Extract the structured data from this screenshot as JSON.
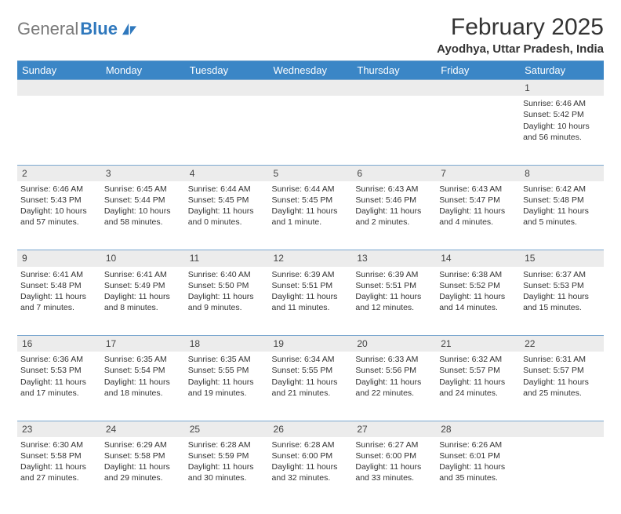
{
  "brand": {
    "gray": "General",
    "blue": "Blue"
  },
  "colors": {
    "header_bg": "#3b86c6",
    "rule": "#7aa7cf",
    "daynum_bg": "#ececec",
    "text": "#333333",
    "logo_gray": "#7a7a7a",
    "logo_blue": "#2f78bd"
  },
  "title": "February 2025",
  "location": "Ayodhya, Uttar Pradesh, India",
  "weekdays": [
    "Sunday",
    "Monday",
    "Tuesday",
    "Wednesday",
    "Thursday",
    "Friday",
    "Saturday"
  ],
  "weeks": [
    {
      "nums": [
        "",
        "",
        "",
        "",
        "",
        "",
        "1"
      ],
      "cells": [
        null,
        null,
        null,
        null,
        null,
        null,
        {
          "sunrise": "Sunrise: 6:46 AM",
          "sunset": "Sunset: 5:42 PM",
          "day1": "Daylight: 10 hours",
          "day2": "and 56 minutes."
        }
      ]
    },
    {
      "nums": [
        "2",
        "3",
        "4",
        "5",
        "6",
        "7",
        "8"
      ],
      "cells": [
        {
          "sunrise": "Sunrise: 6:46 AM",
          "sunset": "Sunset: 5:43 PM",
          "day1": "Daylight: 10 hours",
          "day2": "and 57 minutes."
        },
        {
          "sunrise": "Sunrise: 6:45 AM",
          "sunset": "Sunset: 5:44 PM",
          "day1": "Daylight: 10 hours",
          "day2": "and 58 minutes."
        },
        {
          "sunrise": "Sunrise: 6:44 AM",
          "sunset": "Sunset: 5:45 PM",
          "day1": "Daylight: 11 hours",
          "day2": "and 0 minutes."
        },
        {
          "sunrise": "Sunrise: 6:44 AM",
          "sunset": "Sunset: 5:45 PM",
          "day1": "Daylight: 11 hours",
          "day2": "and 1 minute."
        },
        {
          "sunrise": "Sunrise: 6:43 AM",
          "sunset": "Sunset: 5:46 PM",
          "day1": "Daylight: 11 hours",
          "day2": "and 2 minutes."
        },
        {
          "sunrise": "Sunrise: 6:43 AM",
          "sunset": "Sunset: 5:47 PM",
          "day1": "Daylight: 11 hours",
          "day2": "and 4 minutes."
        },
        {
          "sunrise": "Sunrise: 6:42 AM",
          "sunset": "Sunset: 5:48 PM",
          "day1": "Daylight: 11 hours",
          "day2": "and 5 minutes."
        }
      ]
    },
    {
      "nums": [
        "9",
        "10",
        "11",
        "12",
        "13",
        "14",
        "15"
      ],
      "cells": [
        {
          "sunrise": "Sunrise: 6:41 AM",
          "sunset": "Sunset: 5:48 PM",
          "day1": "Daylight: 11 hours",
          "day2": "and 7 minutes."
        },
        {
          "sunrise": "Sunrise: 6:41 AM",
          "sunset": "Sunset: 5:49 PM",
          "day1": "Daylight: 11 hours",
          "day2": "and 8 minutes."
        },
        {
          "sunrise": "Sunrise: 6:40 AM",
          "sunset": "Sunset: 5:50 PM",
          "day1": "Daylight: 11 hours",
          "day2": "and 9 minutes."
        },
        {
          "sunrise": "Sunrise: 6:39 AM",
          "sunset": "Sunset: 5:51 PM",
          "day1": "Daylight: 11 hours",
          "day2": "and 11 minutes."
        },
        {
          "sunrise": "Sunrise: 6:39 AM",
          "sunset": "Sunset: 5:51 PM",
          "day1": "Daylight: 11 hours",
          "day2": "and 12 minutes."
        },
        {
          "sunrise": "Sunrise: 6:38 AM",
          "sunset": "Sunset: 5:52 PM",
          "day1": "Daylight: 11 hours",
          "day2": "and 14 minutes."
        },
        {
          "sunrise": "Sunrise: 6:37 AM",
          "sunset": "Sunset: 5:53 PM",
          "day1": "Daylight: 11 hours",
          "day2": "and 15 minutes."
        }
      ]
    },
    {
      "nums": [
        "16",
        "17",
        "18",
        "19",
        "20",
        "21",
        "22"
      ],
      "cells": [
        {
          "sunrise": "Sunrise: 6:36 AM",
          "sunset": "Sunset: 5:53 PM",
          "day1": "Daylight: 11 hours",
          "day2": "and 17 minutes."
        },
        {
          "sunrise": "Sunrise: 6:35 AM",
          "sunset": "Sunset: 5:54 PM",
          "day1": "Daylight: 11 hours",
          "day2": "and 18 minutes."
        },
        {
          "sunrise": "Sunrise: 6:35 AM",
          "sunset": "Sunset: 5:55 PM",
          "day1": "Daylight: 11 hours",
          "day2": "and 19 minutes."
        },
        {
          "sunrise": "Sunrise: 6:34 AM",
          "sunset": "Sunset: 5:55 PM",
          "day1": "Daylight: 11 hours",
          "day2": "and 21 minutes."
        },
        {
          "sunrise": "Sunrise: 6:33 AM",
          "sunset": "Sunset: 5:56 PM",
          "day1": "Daylight: 11 hours",
          "day2": "and 22 minutes."
        },
        {
          "sunrise": "Sunrise: 6:32 AM",
          "sunset": "Sunset: 5:57 PM",
          "day1": "Daylight: 11 hours",
          "day2": "and 24 minutes."
        },
        {
          "sunrise": "Sunrise: 6:31 AM",
          "sunset": "Sunset: 5:57 PM",
          "day1": "Daylight: 11 hours",
          "day2": "and 25 minutes."
        }
      ]
    },
    {
      "nums": [
        "23",
        "24",
        "25",
        "26",
        "27",
        "28",
        ""
      ],
      "cells": [
        {
          "sunrise": "Sunrise: 6:30 AM",
          "sunset": "Sunset: 5:58 PM",
          "day1": "Daylight: 11 hours",
          "day2": "and 27 minutes."
        },
        {
          "sunrise": "Sunrise: 6:29 AM",
          "sunset": "Sunset: 5:58 PM",
          "day1": "Daylight: 11 hours",
          "day2": "and 29 minutes."
        },
        {
          "sunrise": "Sunrise: 6:28 AM",
          "sunset": "Sunset: 5:59 PM",
          "day1": "Daylight: 11 hours",
          "day2": "and 30 minutes."
        },
        {
          "sunrise": "Sunrise: 6:28 AM",
          "sunset": "Sunset: 6:00 PM",
          "day1": "Daylight: 11 hours",
          "day2": "and 32 minutes."
        },
        {
          "sunrise": "Sunrise: 6:27 AM",
          "sunset": "Sunset: 6:00 PM",
          "day1": "Daylight: 11 hours",
          "day2": "and 33 minutes."
        },
        {
          "sunrise": "Sunrise: 6:26 AM",
          "sunset": "Sunset: 6:01 PM",
          "day1": "Daylight: 11 hours",
          "day2": "and 35 minutes."
        },
        null
      ]
    }
  ]
}
